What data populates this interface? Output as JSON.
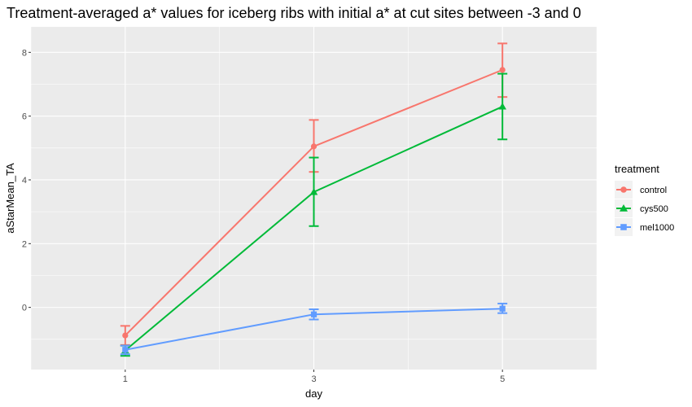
{
  "chart_data": {
    "type": "line",
    "title": "Treatment-averaged a* values for iceberg ribs with initial a* at cut sites between -3 and 0",
    "xlabel": "day",
    "ylabel": "aStarMean_TA",
    "x": [
      1,
      3,
      5
    ],
    "x_ticks": [
      "1",
      "3",
      "5"
    ],
    "y_ticks": [
      "0",
      "2",
      "4",
      "6",
      "8"
    ],
    "xlim": [
      0.0,
      6.0
    ],
    "ylim": [
      -1.95,
      8.8
    ],
    "grid": true,
    "legend": {
      "title": "treatment",
      "position": "right"
    },
    "series": [
      {
        "name": "control",
        "color": "#F8766D",
        "marker": "circle",
        "values": [
          -0.88,
          5.05,
          7.45
        ],
        "error_low": [
          -1.18,
          4.25,
          6.6
        ],
        "error_high": [
          -0.58,
          5.88,
          8.28
        ]
      },
      {
        "name": "cys500",
        "color": "#00BA38",
        "marker": "triangle",
        "values": [
          -1.35,
          3.62,
          6.3
        ],
        "error_low": [
          -1.52,
          2.55,
          5.27
        ],
        "error_high": [
          -1.2,
          4.7,
          7.33
        ]
      },
      {
        "name": "mel1000",
        "color": "#619CFF",
        "marker": "square",
        "values": [
          -1.33,
          -0.22,
          -0.04
        ],
        "error_low": [
          -1.47,
          -0.38,
          -0.18
        ],
        "error_high": [
          -1.2,
          -0.06,
          0.12
        ]
      }
    ]
  }
}
